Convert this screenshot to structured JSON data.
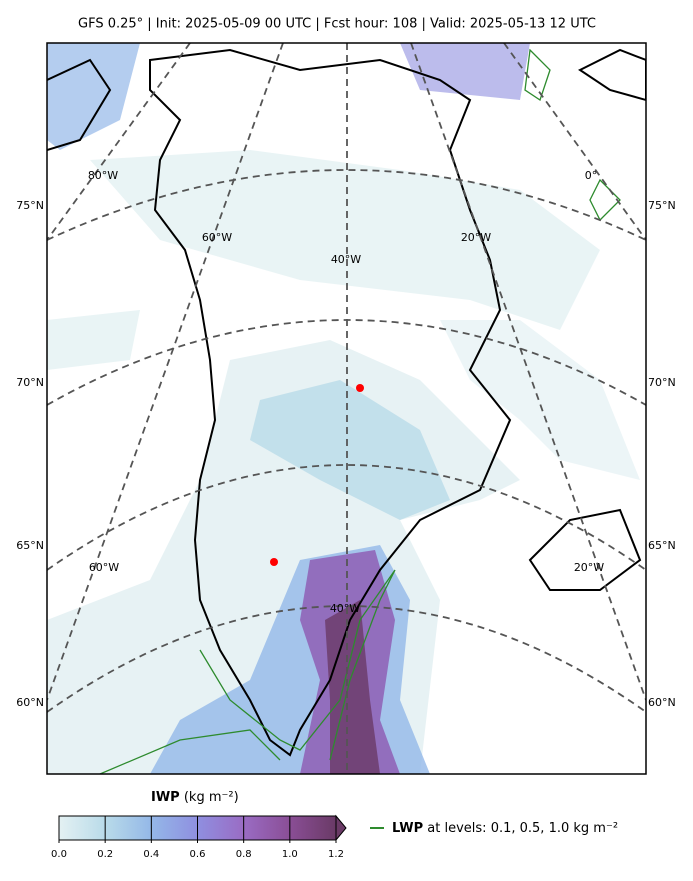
{
  "title": "GFS 0.25° | Init: 2025-05-09 00 UTC | Fcst hour: 108 | Valid: 2025-05-13 12 UTC",
  "map": {
    "lat_labels_left": [
      "75°N",
      "70°N",
      "65°N",
      "60°N"
    ],
    "lat_labels_right": [
      "75°N",
      "70°N",
      "65°N",
      "60°N"
    ],
    "lon_labels": [
      "80°W",
      "60°W",
      "40°W",
      "20°W",
      "0°",
      "60°W",
      "40°W",
      "20°W"
    ]
  },
  "colorbar": {
    "label": "IWP",
    "units": "(kg m⁻²)",
    "lim": [
      0,
      1.2
    ],
    "ticks": [
      {
        "value": 0,
        "label": "0.0"
      },
      0.2,
      0.4,
      0.6,
      0.8,
      {
        "value": 1,
        "label": "1.0"
      },
      1.2
    ],
    "colors": [
      "#e4f1f3",
      "#b9dbe9",
      "#94b8e8",
      "#8f8fe0",
      "#9a6cc4",
      "#8a4e96",
      "#6a3a66"
    ]
  },
  "legend": {
    "name": "LWP",
    "text": "at levels: 0.1, 0.5, 1.0  kg m⁻²",
    "color": "#2e8b2e"
  }
}
